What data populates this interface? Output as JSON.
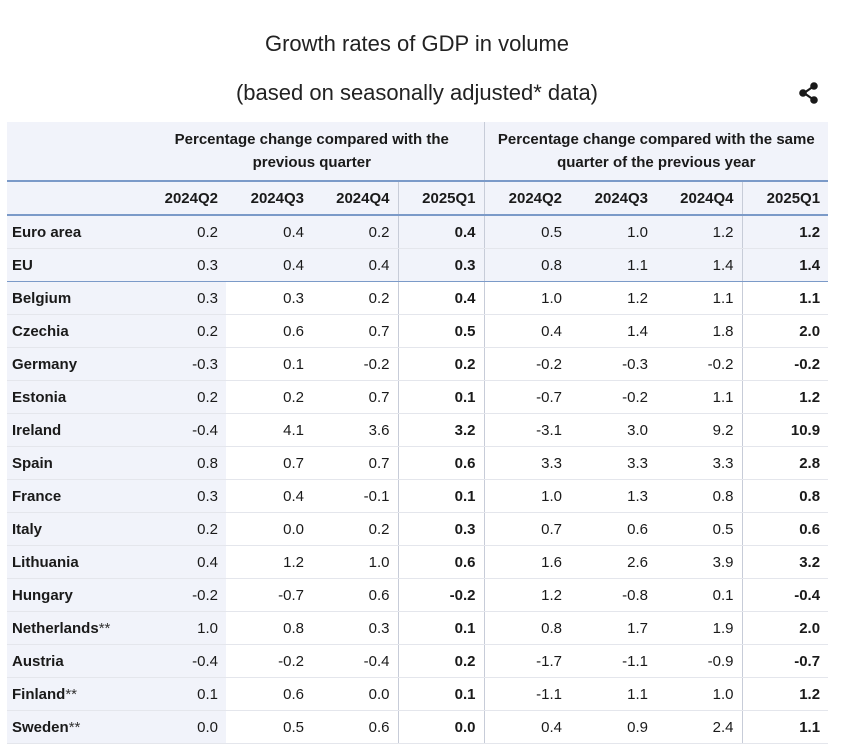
{
  "title_line1": "Growth rates of GDP in volume",
  "title_line2": "(based on seasonally adjusted* data)",
  "share_icon": "share-icon",
  "table": {
    "group_headers": [
      "Percentage change compared with the previous quarter",
      "Percentage change compared with the same quarter of the previous year"
    ],
    "quarter_headers": [
      "2024Q2",
      "2024Q3",
      "2024Q4",
      "2025Q1",
      "2024Q2",
      "2024Q3",
      "2024Q4",
      "2025Q1"
    ],
    "rows": [
      {
        "name": "Euro area",
        "suffix": "",
        "values": [
          "0.2",
          "0.4",
          "0.2",
          "0.4",
          "0.5",
          "1.0",
          "1.2",
          "1.2"
        ]
      },
      {
        "name": "EU",
        "suffix": "",
        "values": [
          "0.3",
          "0.4",
          "0.4",
          "0.3",
          "0.8",
          "1.1",
          "1.4",
          "1.4"
        ]
      },
      {
        "name": "Belgium",
        "suffix": "",
        "values": [
          "0.3",
          "0.3",
          "0.2",
          "0.4",
          "1.0",
          "1.2",
          "1.1",
          "1.1"
        ]
      },
      {
        "name": "Czechia",
        "suffix": "",
        "values": [
          "0.2",
          "0.6",
          "0.7",
          "0.5",
          "0.4",
          "1.4",
          "1.8",
          "2.0"
        ]
      },
      {
        "name": "Germany",
        "suffix": "",
        "values": [
          "-0.3",
          "0.1",
          "-0.2",
          "0.2",
          "-0.2",
          "-0.3",
          "-0.2",
          "-0.2"
        ]
      },
      {
        "name": "Estonia",
        "suffix": "",
        "values": [
          "0.2",
          "0.2",
          "0.7",
          "0.1",
          "-0.7",
          "-0.2",
          "1.1",
          "1.2"
        ]
      },
      {
        "name": "Ireland",
        "suffix": "",
        "values": [
          "-0.4",
          "4.1",
          "3.6",
          "3.2",
          "-3.1",
          "3.0",
          "9.2",
          "10.9"
        ]
      },
      {
        "name": "Spain",
        "suffix": "",
        "values": [
          "0.8",
          "0.7",
          "0.7",
          "0.6",
          "3.3",
          "3.3",
          "3.3",
          "2.8"
        ]
      },
      {
        "name": "France",
        "suffix": "",
        "values": [
          "0.3",
          "0.4",
          "-0.1",
          "0.1",
          "1.0",
          "1.3",
          "0.8",
          "0.8"
        ]
      },
      {
        "name": "Italy",
        "suffix": "",
        "values": [
          "0.2",
          "0.0",
          "0.2",
          "0.3",
          "0.7",
          "0.6",
          "0.5",
          "0.6"
        ]
      },
      {
        "name": "Lithuania",
        "suffix": "",
        "values": [
          "0.4",
          "1.2",
          "1.0",
          "0.6",
          "1.6",
          "2.6",
          "3.9",
          "3.2"
        ]
      },
      {
        "name": "Hungary",
        "suffix": "",
        "values": [
          "-0.2",
          "-0.7",
          "0.6",
          "-0.2",
          "1.2",
          "-0.8",
          "0.1",
          "-0.4"
        ]
      },
      {
        "name": "Netherlands",
        "suffix": "**",
        "values": [
          "1.0",
          "0.8",
          "0.3",
          "0.1",
          "0.8",
          "1.7",
          "1.9",
          "2.0"
        ]
      },
      {
        "name": "Austria",
        "suffix": "",
        "values": [
          "-0.4",
          "-0.2",
          "-0.4",
          "0.2",
          "-1.7",
          "-1.1",
          "-0.9",
          "-0.7"
        ]
      },
      {
        "name": "Finland",
        "suffix": "**",
        "values": [
          "0.1",
          "0.6",
          "0.0",
          "0.1",
          "-1.1",
          "1.1",
          "1.0",
          "1.2"
        ]
      },
      {
        "name": "Sweden",
        "suffix": "**",
        "values": [
          "0.0",
          "0.5",
          "0.6",
          "0.0",
          "0.4",
          "0.9",
          "2.4",
          "1.1"
        ]
      }
    ]
  }
}
